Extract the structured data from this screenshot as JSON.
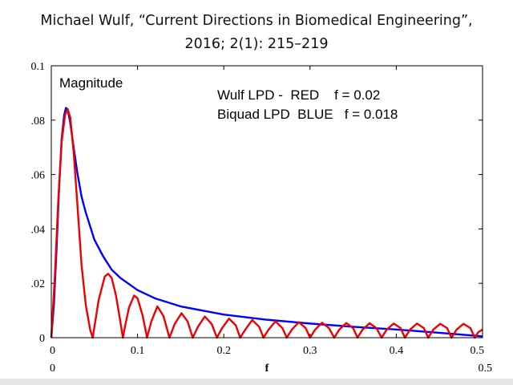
{
  "title": {
    "line1": "Michael Wulf, “Current Directions in Biomedical Engineering”,",
    "line2": "2016; 2(1): 215–219"
  },
  "chart_data": {
    "type": "line",
    "title": "Magnitude",
    "xlabel": "f",
    "xlim": [
      0,
      0.5
    ],
    "ylim": [
      0,
      0.1
    ],
    "x_ticks": [
      0,
      0.1,
      0.2,
      0.3,
      0.4,
      0.5
    ],
    "x_tick_labels": [
      "0",
      "0.1",
      "0.2",
      "0.3",
      "0.4",
      "0.5"
    ],
    "x_range_labels": [
      "0",
      "0.5"
    ],
    "y_ticks": [
      0,
      0.02,
      0.04,
      0.06,
      0.08,
      0.1
    ],
    "y_tick_labels": [
      "0",
      ".02",
      ".04",
      ".06",
      ".08",
      "0.1"
    ],
    "grid": false,
    "annotations": [
      "Wulf LPD -  RED    f = 0.02",
      "Biquad LPD  BLUE   f = 0.018"
    ],
    "series": [
      {
        "name": "Biquad LPD",
        "color": "#0000ff",
        "points": [
          [
            0,
            0
          ],
          [
            0.003,
            0.012
          ],
          [
            0.006,
            0.032
          ],
          [
            0.009,
            0.055
          ],
          [
            0.012,
            0.073
          ],
          [
            0.015,
            0.082
          ],
          [
            0.017,
            0.0845
          ],
          [
            0.019,
            0.084
          ],
          [
            0.022,
            0.079
          ],
          [
            0.025,
            0.072
          ],
          [
            0.03,
            0.061
          ],
          [
            0.035,
            0.052
          ],
          [
            0.04,
            0.046
          ],
          [
            0.05,
            0.036
          ],
          [
            0.06,
            0.03
          ],
          [
            0.07,
            0.025
          ],
          [
            0.08,
            0.022
          ],
          [
            0.1,
            0.0175
          ],
          [
            0.12,
            0.0145
          ],
          [
            0.15,
            0.0115
          ],
          [
            0.2,
            0.0085
          ],
          [
            0.25,
            0.0066
          ],
          [
            0.3,
            0.0052
          ],
          [
            0.35,
            0.004
          ],
          [
            0.4,
            0.003
          ],
          [
            0.45,
            0.0018
          ],
          [
            0.5,
            0.0005
          ]
        ]
      },
      {
        "name": "Wulf LPD",
        "color": "#ee0000",
        "points": [
          [
            0,
            0
          ],
          [
            0.004,
            0.022
          ],
          [
            0.008,
            0.05
          ],
          [
            0.012,
            0.072
          ],
          [
            0.016,
            0.082
          ],
          [
            0.019,
            0.084
          ],
          [
            0.022,
            0.081
          ],
          [
            0.026,
            0.068
          ],
          [
            0.03,
            0.05
          ],
          [
            0.035,
            0.027
          ],
          [
            0.04,
            0.012
          ],
          [
            0.045,
            0.003
          ],
          [
            0.048,
            0
          ],
          [
            0.05,
            0.004
          ],
          [
            0.055,
            0.014
          ],
          [
            0.062,
            0.0225
          ],
          [
            0.066,
            0.0235
          ],
          [
            0.07,
            0.022
          ],
          [
            0.075,
            0.0155
          ],
          [
            0.08,
            0.006
          ],
          [
            0.083,
            0
          ],
          [
            0.086,
            0.005
          ],
          [
            0.09,
            0.011
          ],
          [
            0.096,
            0.0155
          ],
          [
            0.1,
            0.0145
          ],
          [
            0.106,
            0.008
          ],
          [
            0.111,
            0
          ],
          [
            0.116,
            0.006
          ],
          [
            0.123,
            0.0115
          ],
          [
            0.13,
            0.008
          ],
          [
            0.137,
            0
          ],
          [
            0.143,
            0.005
          ],
          [
            0.151,
            0.009
          ],
          [
            0.158,
            0.006
          ],
          [
            0.164,
            0
          ],
          [
            0.17,
            0.004
          ],
          [
            0.178,
            0.0078
          ],
          [
            0.186,
            0.005
          ],
          [
            0.192,
            0
          ],
          [
            0.198,
            0.0035
          ],
          [
            0.206,
            0.007
          ],
          [
            0.214,
            0.0045
          ],
          [
            0.219,
            0
          ],
          [
            0.225,
            0.003
          ],
          [
            0.233,
            0.0065
          ],
          [
            0.241,
            0.004
          ],
          [
            0.246,
            0
          ],
          [
            0.252,
            0.003
          ],
          [
            0.26,
            0.006
          ],
          [
            0.268,
            0.0035
          ],
          [
            0.273,
            0
          ],
          [
            0.279,
            0.003
          ],
          [
            0.287,
            0.0057
          ],
          [
            0.295,
            0.0035
          ],
          [
            0.3,
            0
          ],
          [
            0.306,
            0.003
          ],
          [
            0.314,
            0.0055
          ],
          [
            0.322,
            0.0035
          ],
          [
            0.328,
            0
          ],
          [
            0.334,
            0.003
          ],
          [
            0.342,
            0.0054
          ],
          [
            0.35,
            0.0035
          ],
          [
            0.355,
            0
          ],
          [
            0.361,
            0.003
          ],
          [
            0.369,
            0.0053
          ],
          [
            0.377,
            0.0035
          ],
          [
            0.383,
            0
          ],
          [
            0.389,
            0.003
          ],
          [
            0.397,
            0.0052
          ],
          [
            0.405,
            0.0035
          ],
          [
            0.41,
            0
          ],
          [
            0.416,
            0.003
          ],
          [
            0.424,
            0.0052
          ],
          [
            0.432,
            0.0035
          ],
          [
            0.437,
            0
          ],
          [
            0.443,
            0.003
          ],
          [
            0.451,
            0.0051
          ],
          [
            0.459,
            0.0035
          ],
          [
            0.464,
            0
          ],
          [
            0.47,
            0.003
          ],
          [
            0.478,
            0.0051
          ],
          [
            0.486,
            0.0035
          ],
          [
            0.491,
            0
          ],
          [
            0.495,
            0.002
          ],
          [
            0.5,
            0.003
          ]
        ]
      }
    ]
  }
}
